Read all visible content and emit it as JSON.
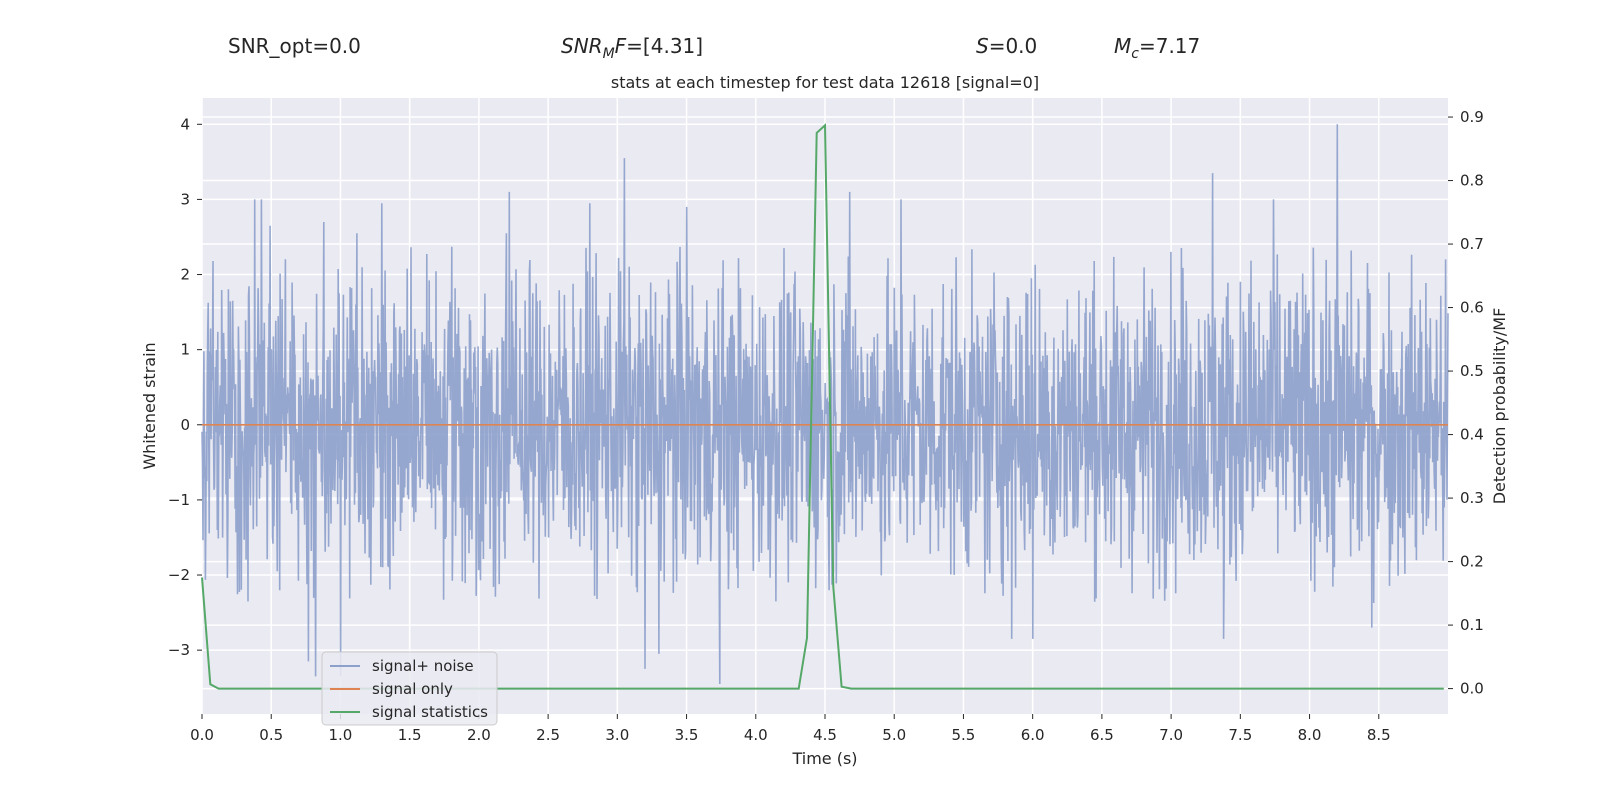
{
  "header": {
    "snr_opt": "SNR_opt=0.0",
    "snr_mf_symbol": "SNR",
    "snr_mf_sub": "M",
    "snr_mf_suffix": "F",
    "snr_mf_value": "=[4.31]",
    "s_symbol": "S",
    "s_value": "=0.0",
    "mc_symbol": "M",
    "mc_sub": "c",
    "mc_value": "=7.17"
  },
  "colors": {
    "background": "#eaeaf2",
    "grid": "#ffffff",
    "noise": "#8da0cb",
    "signal_only": "#dd8452",
    "statistics": "#55a868",
    "text": "#262626"
  },
  "chart_data": {
    "type": "line",
    "title": "stats at each timestep for test data 12618 [signal=0]",
    "xlabel": "Time (s)",
    "ylabel": "Whitened strain",
    "y2label": "Detection probability/MF",
    "xlim": [
      0,
      9.0
    ],
    "ylim": [
      -3.85,
      4.35
    ],
    "y2lim": [
      -0.04,
      0.93
    ],
    "xticks": [
      0.0,
      0.5,
      1.0,
      1.5,
      2.0,
      2.5,
      3.0,
      3.5,
      4.0,
      4.5,
      5.0,
      5.5,
      6.0,
      6.5,
      7.0,
      7.5,
      8.0,
      8.5
    ],
    "xtick_labels": [
      "0.0",
      "0.5",
      "1.0",
      "1.5",
      "2.0",
      "2.5",
      "3.0",
      "3.5",
      "4.0",
      "4.5",
      "5.0",
      "5.5",
      "6.0",
      "6.5",
      "7.0",
      "7.5",
      "8.0",
      "8.5"
    ],
    "yticks": [
      -3,
      -2,
      -1,
      0,
      1,
      2,
      3,
      4
    ],
    "ytick_labels": [
      "−3",
      "−2",
      "−1",
      "0",
      "1",
      "2",
      "3",
      "4"
    ],
    "y2ticks": [
      0.0,
      0.1,
      0.2,
      0.3,
      0.4,
      0.5,
      0.6,
      0.7,
      0.8,
      0.9
    ],
    "y2tick_labels": [
      "0.0",
      "0.1",
      "0.2",
      "0.3",
      "0.4",
      "0.5",
      "0.6",
      "0.7",
      "0.8",
      "0.9"
    ],
    "grid": true,
    "legend_position": "lower-left",
    "series": [
      {
        "name": "signal+ noise",
        "axis": "left",
        "style": "noise-band",
        "time_range": [
          0,
          9.0
        ],
        "typical_range": [
          -1.9,
          1.9
        ],
        "max": 4.0,
        "min": -3.45,
        "spikes": [
          {
            "x": 0.38,
            "y": 3.0
          },
          {
            "x": 0.43,
            "y": 3.0
          },
          {
            "x": 0.49,
            "y": 2.65
          },
          {
            "x": 0.88,
            "y": 2.7
          },
          {
            "x": 1.12,
            "y": 2.55
          },
          {
            "x": 1.3,
            "y": 2.95
          },
          {
            "x": 2.2,
            "y": 2.55
          },
          {
            "x": 2.22,
            "y": 3.1
          },
          {
            "x": 2.8,
            "y": 2.95
          },
          {
            "x": 3.05,
            "y": 3.55
          },
          {
            "x": 3.2,
            "y": 3.0
          },
          {
            "x": 3.5,
            "y": 2.9
          },
          {
            "x": 4.68,
            "y": 3.1
          },
          {
            "x": 5.05,
            "y": 3.0
          },
          {
            "x": 7.3,
            "y": 3.35
          },
          {
            "x": 7.74,
            "y": 3.0
          },
          {
            "x": 8.2,
            "y": 4.0
          },
          {
            "x": 0.77,
            "y": -3.15
          },
          {
            "x": 0.82,
            "y": -3.35
          },
          {
            "x": 1.0,
            "y": -3.35
          },
          {
            "x": 3.2,
            "y": -3.25
          },
          {
            "x": 3.3,
            "y": -3.05
          },
          {
            "x": 3.74,
            "y": -3.45
          },
          {
            "x": 5.85,
            "y": -2.85
          },
          {
            "x": 6.0,
            "y": -2.85
          },
          {
            "x": 7.38,
            "y": -2.85
          },
          {
            "x": 8.45,
            "y": -2.7
          }
        ]
      },
      {
        "name": "signal only",
        "axis": "left",
        "x": [
          0.0,
          9.0
        ],
        "y": [
          0.0,
          0.0
        ]
      },
      {
        "name": "signal statistics",
        "axis": "right",
        "x": [
          0.0,
          0.06,
          0.12,
          0.5,
          1.0,
          2.0,
          3.0,
          4.0,
          4.31,
          4.37,
          4.44,
          4.5,
          4.56,
          4.62,
          4.69,
          5.0,
          6.0,
          7.0,
          8.0,
          8.97
        ],
        "y": [
          0.175,
          0.007,
          0.0,
          0.0,
          0.0,
          0.0,
          0.0,
          0.0,
          0.0,
          0.08,
          0.875,
          0.887,
          0.16,
          0.003,
          0.0,
          0.0,
          0.0,
          0.0,
          0.0,
          0.0
        ]
      }
    ]
  }
}
